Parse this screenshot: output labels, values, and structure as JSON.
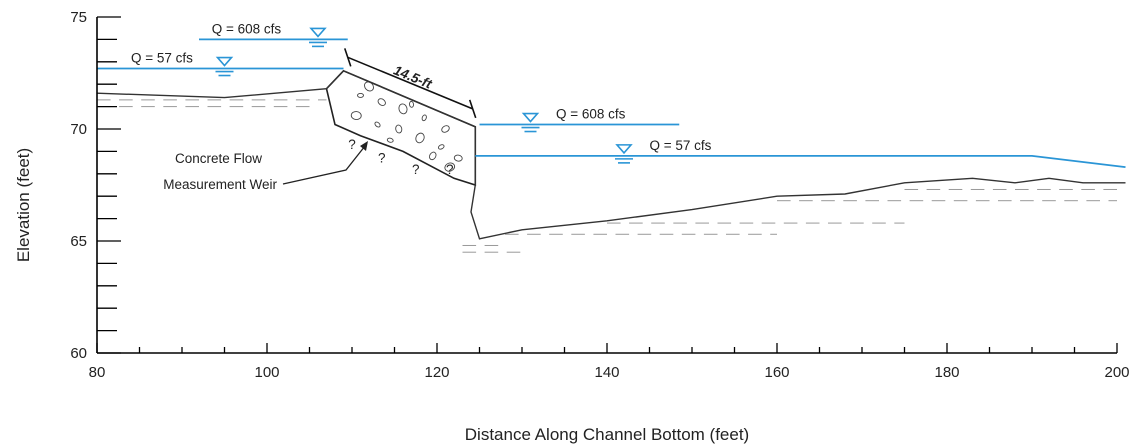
{
  "chart_data": {
    "type": "diagram",
    "xlabel": "Distance Along Channel Bottom (feet)",
    "ylabel": "Elevation (feet)",
    "xlim": [
      80,
      200
    ],
    "ylim": [
      60,
      75
    ],
    "x_ticks": [
      "80",
      "100",
      "120",
      "140",
      "160",
      "180",
      "200"
    ],
    "y_ticks": [
      "60",
      "65",
      "70",
      "75"
    ],
    "ground_profile": [
      [
        80,
        71.6
      ],
      [
        95,
        71.4
      ],
      [
        107,
        71.8
      ],
      [
        109,
        72.6
      ],
      [
        124.5,
        70.1
      ],
      [
        124.5,
        67.5
      ],
      [
        124,
        66.3
      ],
      [
        125,
        65.1
      ],
      [
        130,
        65.5
      ],
      [
        140,
        65.9
      ],
      [
        150,
        66.4
      ],
      [
        160,
        67.0
      ],
      [
        168,
        67.1
      ],
      [
        175,
        67.6
      ],
      [
        183,
        67.8
      ],
      [
        188,
        67.6
      ],
      [
        192,
        67.8
      ],
      [
        196,
        67.6
      ],
      [
        201,
        67.6
      ]
    ],
    "water_surfaces": [
      {
        "label": "Q = 608 cfs",
        "x": [
          92,
          109.5
        ],
        "y": 74.0
      },
      {
        "label": "Q = 57 cfs",
        "x": [
          80,
          109
        ],
        "y": 72.7
      },
      {
        "label": "Q = 608 cfs",
        "x": [
          125,
          148.5
        ],
        "y": 70.2
      },
      {
        "label": "Q = 57 cfs",
        "x": [
          124.5,
          190,
          201
        ],
        "y": [
          68.8,
          68.8,
          68.3
        ]
      }
    ],
    "annotations": {
      "weir_label_line1": "Concrete Flow",
      "weir_label_line2": "Measurement Weir",
      "dimension": "14.5-ft",
      "unknown_mark": "?"
    }
  },
  "colors": {
    "water": "#2a95d6",
    "ground": "#333333",
    "axis": "#000000"
  }
}
